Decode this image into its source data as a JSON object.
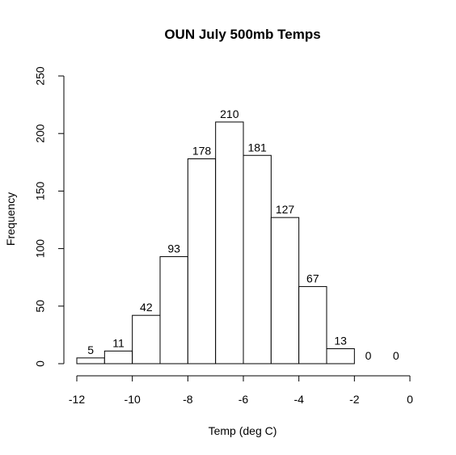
{
  "chart_data": {
    "type": "bar",
    "title": "OUN July 500mb Temps",
    "xlabel": "Temp (deg C)",
    "ylabel": "Frequency",
    "bins": [
      {
        "start": -12,
        "end": -11,
        "value": 5
      },
      {
        "start": -11,
        "end": -10,
        "value": 11
      },
      {
        "start": -10,
        "end": -9,
        "value": 42
      },
      {
        "start": -9,
        "end": -8,
        "value": 93
      },
      {
        "start": -8,
        "end": -7,
        "value": 178
      },
      {
        "start": -7,
        "end": -6,
        "value": 210
      },
      {
        "start": -6,
        "end": -5,
        "value": 181
      },
      {
        "start": -5,
        "end": -4,
        "value": 127
      },
      {
        "start": -4,
        "end": -3,
        "value": 67
      },
      {
        "start": -3,
        "end": -2,
        "value": 13
      },
      {
        "start": -2,
        "end": -1,
        "value": 0
      },
      {
        "start": -1,
        "end": 0,
        "value": 0
      }
    ],
    "xticks": [
      -12,
      -10,
      -8,
      -6,
      -4,
      -2,
      0
    ],
    "yticks": [
      0,
      50,
      100,
      150,
      200,
      250
    ],
    "xlim": [
      -12,
      0
    ],
    "ylim": [
      0,
      250
    ],
    "grid": false,
    "colors": {
      "bar_fill": "#ffffff",
      "bar_stroke": "#000000"
    }
  }
}
